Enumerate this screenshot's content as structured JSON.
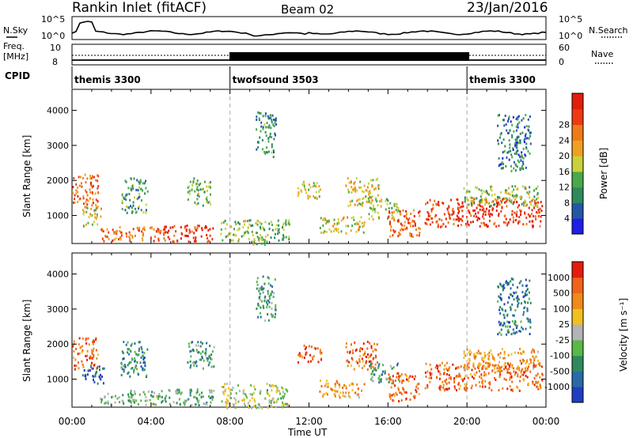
{
  "header": {
    "title": "Rankin Inlet (fitACF)",
    "beam": "Beam 02",
    "date": "23/Jan/2016"
  },
  "top_panels": {
    "nsky_label": "N.Sky",
    "nsearch_label": "N.Search",
    "nsky_ticks": [
      "10^5",
      "10^0"
    ],
    "nsearch_ticks": [
      "10^5",
      "10^0"
    ],
    "freq_label_1": "Freq.",
    "freq_label_2": "[MHz]",
    "freq_ticks": [
      "10",
      "8"
    ],
    "nave_label": "Nave",
    "nave_ticks": [
      "60",
      "0"
    ],
    "cpid_label": "CPID",
    "cpid_segments": [
      {
        "label": "themis 3300",
        "start_h": 0,
        "end_h": 8
      },
      {
        "label": "twofsound 3503",
        "start_h": 8,
        "end_h": 20
      },
      {
        "label": "themis 3300",
        "start_h": 20,
        "end_h": 24
      }
    ]
  },
  "chart_data": [
    {
      "type": "heatmap",
      "name": "power",
      "ylabel": "Slant Range [km]",
      "yticks": [
        1000,
        2000,
        3000,
        4000
      ],
      "ylim": [
        200,
        4600
      ],
      "colorbar_label": "Power [dB]",
      "colorbar_ticks": [
        "4",
        "8",
        "12",
        "16",
        "20",
        "24",
        "28"
      ],
      "colors": [
        "#1f1fe6",
        "#2456a8",
        "#2e8a5c",
        "#4aa84a",
        "#c8d23a",
        "#f0a020",
        "#f07a18",
        "#ee3a10",
        "#e41c0c"
      ],
      "scatter_regions": [
        {
          "t0": 0.0,
          "t1": 1.3,
          "r0": 1300,
          "r1": 2200,
          "level": 0.75
        },
        {
          "t0": 0.5,
          "t1": 1.5,
          "r0": 700,
          "r1": 1300,
          "level": 0.55
        },
        {
          "t0": 1.4,
          "t1": 4.8,
          "r0": 300,
          "r1": 700,
          "level": 0.72
        },
        {
          "t0": 2.5,
          "t1": 3.8,
          "r0": 1100,
          "r1": 2100,
          "level": 0.35
        },
        {
          "t0": 4.6,
          "t1": 7.2,
          "r0": 280,
          "r1": 750,
          "level": 0.9
        },
        {
          "t0": 5.8,
          "t1": 7.0,
          "r0": 1300,
          "r1": 2100,
          "level": 0.4
        },
        {
          "t0": 7.5,
          "t1": 9.0,
          "r0": 300,
          "r1": 900,
          "level": 0.45
        },
        {
          "t0": 9.0,
          "t1": 11.0,
          "r0": 200,
          "r1": 900,
          "level": 0.4
        },
        {
          "t0": 9.3,
          "t1": 10.3,
          "r0": 2700,
          "r1": 4000,
          "level": 0.3
        },
        {
          "t0": 11.4,
          "t1": 12.6,
          "r0": 1500,
          "r1": 2000,
          "level": 0.5
        },
        {
          "t0": 12.5,
          "t1": 14.8,
          "r0": 500,
          "r1": 1000,
          "level": 0.55
        },
        {
          "t0": 13.8,
          "t1": 15.5,
          "r0": 1300,
          "r1": 2100,
          "level": 0.55
        },
        {
          "t0": 15.0,
          "t1": 16.5,
          "r0": 900,
          "r1": 1500,
          "level": 0.45
        },
        {
          "t0": 16.0,
          "t1": 17.6,
          "r0": 400,
          "r1": 1200,
          "level": 0.78
        },
        {
          "t0": 17.8,
          "t1": 19.6,
          "r0": 700,
          "r1": 1500,
          "level": 0.85
        },
        {
          "t0": 19.5,
          "t1": 23.8,
          "r0": 700,
          "r1": 1500,
          "level": 0.88
        },
        {
          "t0": 19.8,
          "t1": 23.6,
          "r0": 1300,
          "r1": 1900,
          "level": 0.45
        },
        {
          "t0": 21.5,
          "t1": 23.2,
          "r0": 2300,
          "r1": 3900,
          "level": 0.25
        }
      ]
    },
    {
      "type": "heatmap",
      "name": "velocity",
      "ylabel": "Slant Range [km]",
      "yticks": [
        1000,
        2000,
        3000,
        4000
      ],
      "ylim": [
        200,
        4600
      ],
      "colorbar_label": "Velocity [m s⁻¹]",
      "colorbar_ticks": [
        "1000",
        "500",
        "100",
        "25",
        "-25",
        "-100",
        "-500",
        "-1000"
      ],
      "colors": [
        "#1f3fbf",
        "#2a6aa8",
        "#2e8a5c",
        "#58b848",
        "#b4b4b4",
        "#f0c020",
        "#f08a18",
        "#f06418",
        "#e41c0c"
      ],
      "scatter_regions": [
        {
          "t0": 0.0,
          "t1": 1.3,
          "r0": 1300,
          "r1": 2200,
          "level": 0.82
        },
        {
          "t0": 0.5,
          "t1": 1.6,
          "r0": 900,
          "r1": 1400,
          "level": 0.1
        },
        {
          "t0": 1.4,
          "t1": 4.8,
          "r0": 300,
          "r1": 700,
          "level": 0.4
        },
        {
          "t0": 2.4,
          "t1": 3.8,
          "r0": 1100,
          "r1": 2100,
          "level": 0.25
        },
        {
          "t0": 4.6,
          "t1": 7.2,
          "r0": 280,
          "r1": 750,
          "level": 0.35
        },
        {
          "t0": 5.8,
          "t1": 7.2,
          "r0": 1300,
          "r1": 2100,
          "level": 0.3
        },
        {
          "t0": 7.5,
          "t1": 11.0,
          "r0": 200,
          "r1": 900,
          "level": 0.5
        },
        {
          "t0": 9.3,
          "t1": 10.3,
          "r0": 2700,
          "r1": 4000,
          "level": 0.3
        },
        {
          "t0": 11.4,
          "t1": 12.6,
          "r0": 1500,
          "r1": 2000,
          "level": 0.85
        },
        {
          "t0": 12.5,
          "t1": 14.8,
          "r0": 500,
          "r1": 1000,
          "level": 0.7
        },
        {
          "t0": 13.8,
          "t1": 15.5,
          "r0": 1300,
          "r1": 2100,
          "level": 0.82
        },
        {
          "t0": 15.0,
          "t1": 16.5,
          "r0": 900,
          "r1": 1500,
          "level": 0.3
        },
        {
          "t0": 16.0,
          "t1": 17.6,
          "r0": 400,
          "r1": 1200,
          "level": 0.8
        },
        {
          "t0": 17.8,
          "t1": 19.6,
          "r0": 700,
          "r1": 1500,
          "level": 0.85
        },
        {
          "t0": 19.5,
          "t1": 23.8,
          "r0": 700,
          "r1": 1500,
          "level": 0.8
        },
        {
          "t0": 19.8,
          "t1": 23.6,
          "r0": 1300,
          "r1": 1900,
          "level": 0.7
        },
        {
          "t0": 21.5,
          "t1": 23.2,
          "r0": 2300,
          "r1": 3900,
          "level": 0.2
        }
      ]
    }
  ],
  "x_axis": {
    "label": "Time UT",
    "ticks": [
      "00:00",
      "04:00",
      "08:00",
      "12:00",
      "16:00",
      "20:00",
      "00:00"
    ]
  }
}
